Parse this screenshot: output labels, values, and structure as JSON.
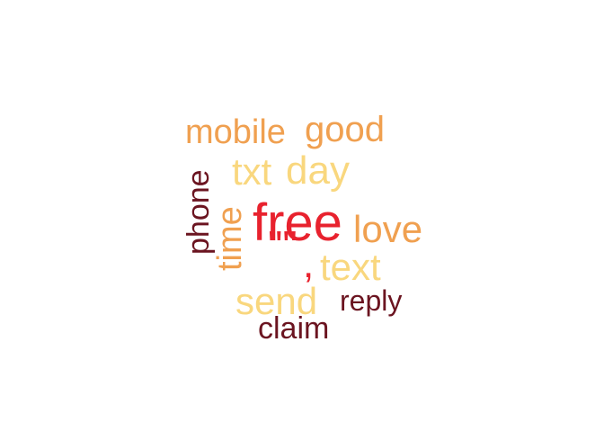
{
  "colors": {
    "pale_yellow": "#F9D77E",
    "orange": "#F0A050",
    "red": "#E8222E",
    "dark_red": "#6B1420"
  },
  "words": {
    "free": "free",
    "quote_marks": "\"\"",
    "comma": ",",
    "text": "text",
    "send": "send",
    "love": "love",
    "txt": "txt",
    "day": "day",
    "good": "good",
    "mobile": "mobile",
    "time": "time",
    "phone": "phone",
    "reply": "reply",
    "claim": "claim"
  }
}
